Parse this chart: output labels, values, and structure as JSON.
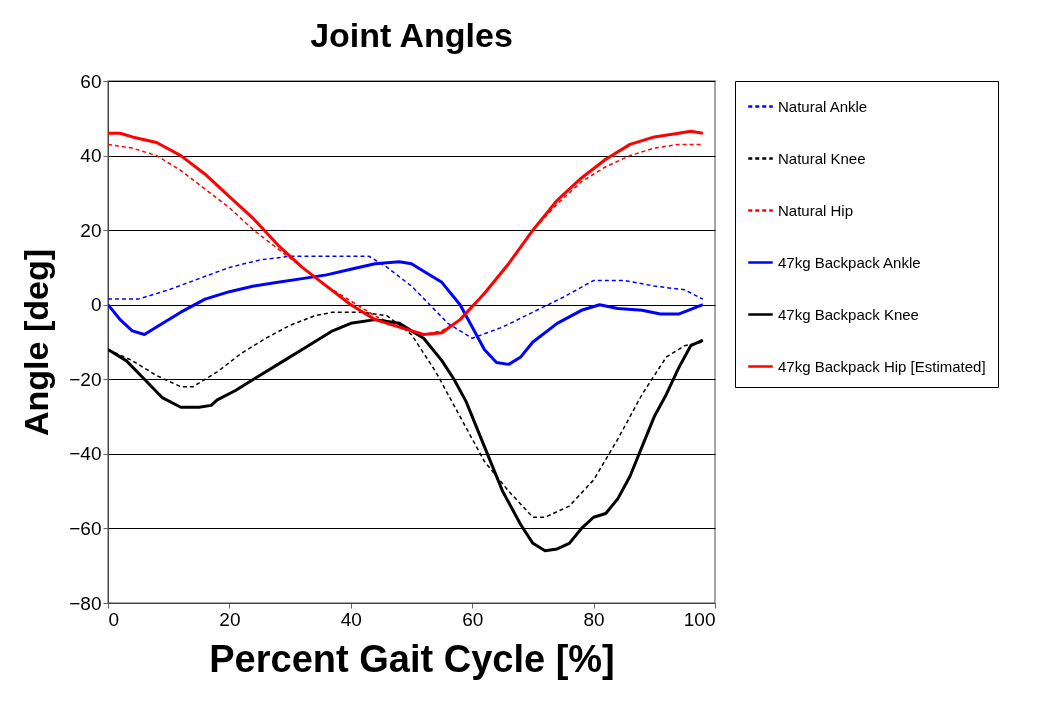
{
  "chart_data": {
    "type": "line",
    "title": "Joint Angles",
    "xlabel": "Percent Gait Cycle [%]",
    "ylabel": "Angle [deg]",
    "xlim": [
      0,
      100
    ],
    "xticks": [
      0,
      20,
      40,
      60,
      80,
      100
    ],
    "ylim": [
      -80,
      60
    ],
    "yticks": [
      -80,
      -60,
      -40,
      -20,
      0,
      20,
      40,
      60
    ],
    "grid": "y",
    "legend": "right",
    "marker": "none",
    "series": [
      {
        "name": "Natural Ankle",
        "color": "#0000ff",
        "line_style": "dashed",
        "x": [
          0,
          5,
          10,
          15,
          20,
          25,
          30,
          35,
          40,
          43,
          46,
          50,
          53,
          56,
          60,
          65,
          70,
          75,
          80,
          85,
          90,
          95,
          98
        ],
        "values": [
          1.5,
          1.5,
          4,
          7,
          10,
          12,
          13,
          13,
          13,
          13,
          10,
          5,
          0,
          -5,
          -9,
          -6,
          -2,
          2,
          6.5,
          6.5,
          5,
          4,
          1.5
        ]
      },
      {
        "name": "Natural Knee",
        "color": "#000000",
        "line_style": "dashed",
        "x": [
          0,
          4,
          8,
          12,
          14,
          18,
          22,
          26,
          30,
          34,
          37,
          42,
          46,
          50,
          54,
          58,
          62,
          66,
          70,
          72,
          76,
          80,
          84,
          88,
          92,
          95,
          98
        ],
        "values": [
          -12,
          -15,
          -19,
          -22,
          -22,
          -18,
          -13,
          -9,
          -5.5,
          -3,
          -2,
          -2,
          -3,
          -8,
          -18,
          -30,
          -42,
          -50,
          -57,
          -57,
          -54,
          -47,
          -36,
          -24,
          -14,
          -11,
          -10
        ]
      },
      {
        "name": "Natural Hip",
        "color": "#ff0000",
        "line_style": "dashed",
        "x": [
          0,
          4,
          8,
          12,
          16,
          20,
          24,
          28,
          32,
          36,
          40,
          44,
          48,
          52,
          55,
          58,
          62,
          66,
          70,
          74,
          78,
          82,
          86,
          90,
          94,
          98
        ],
        "values": [
          43,
          42,
          40,
          36,
          31,
          26,
          20,
          15,
          10,
          5,
          1,
          -3,
          -6,
          -8,
          -7,
          -4,
          3,
          11,
          20,
          27,
          33,
          37,
          40,
          42,
          43,
          43
        ]
      },
      {
        "name": "47kg Backpack Ankle",
        "color": "#0000ff",
        "line_style": "solid",
        "x": [
          0,
          2,
          4,
          6,
          8,
          12,
          16,
          20,
          24,
          28,
          32,
          36,
          40,
          44,
          48,
          50,
          52,
          55,
          58,
          60,
          62,
          64,
          66,
          68,
          70,
          74,
          78,
          81,
          84,
          88,
          91,
          94,
          98
        ],
        "values": [
          0,
          -4,
          -7,
          -8,
          -6,
          -2,
          1.5,
          3.5,
          5,
          6,
          7,
          8,
          9.5,
          11,
          11.5,
          11,
          9,
          6,
          0,
          -6,
          -12,
          -15.5,
          -16,
          -14,
          -10,
          -5,
          -1.5,
          0,
          -1,
          -1.5,
          -2.5,
          -2.5,
          0
        ]
      },
      {
        "name": "47kg Backpack Knee",
        "color": "#000000",
        "line_style": "solid",
        "x": [
          0,
          3,
          6,
          9,
          12,
          15,
          17,
          18,
          21,
          25,
          29,
          33,
          37,
          40,
          44,
          48,
          52,
          55,
          57,
          59,
          62,
          65,
          68,
          70,
          72,
          74,
          76,
          78,
          80,
          82,
          84,
          86,
          88,
          90,
          92,
          94,
          96,
          98
        ],
        "values": [
          -12,
          -15,
          -20,
          -25,
          -27.5,
          -27.5,
          -27,
          -25.5,
          -23,
          -19,
          -15,
          -11,
          -7,
          -5,
          -4,
          -5,
          -9,
          -15,
          -20,
          -26,
          -38,
          -50,
          -59,
          -64,
          -66,
          -65.5,
          -64,
          -60,
          -57,
          -56,
          -52,
          -46,
          -38,
          -30,
          -24,
          -17,
          -11,
          -9.5
        ]
      },
      {
        "name": "47kg Backpack Hip [Estimated]",
        "color": "#ff0000",
        "line_style": "solid",
        "x": [
          0,
          2,
          4,
          8,
          12,
          16,
          20,
          24,
          28,
          32,
          36,
          40,
          44,
          48,
          52,
          55,
          58,
          62,
          66,
          70,
          74,
          78,
          82,
          86,
          90,
          94,
          96,
          98
        ],
        "values": [
          46,
          46,
          45,
          43.5,
          40,
          35,
          29,
          23,
          16,
          10,
          5,
          0,
          -4,
          -6,
          -8,
          -7.5,
          -4,
          3,
          11,
          20,
          28,
          34,
          39,
          43,
          45,
          46,
          46.5,
          46
        ]
      }
    ]
  }
}
